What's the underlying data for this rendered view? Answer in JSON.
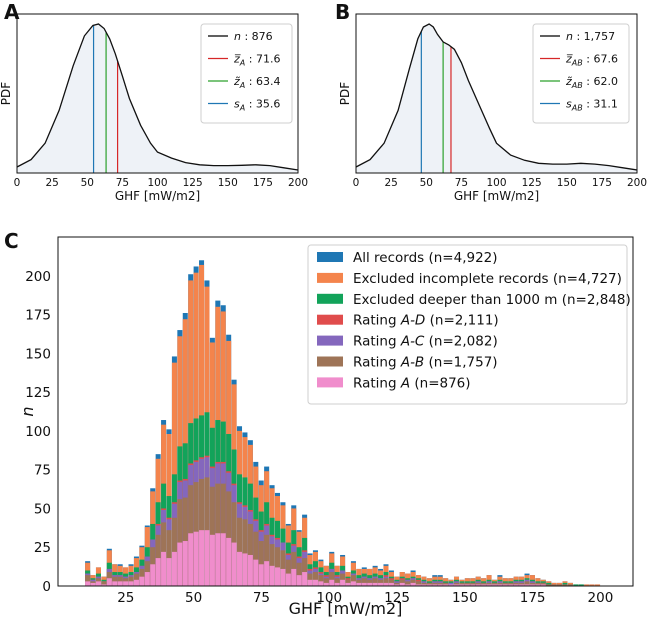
{
  "chart_data": [
    {
      "id": "A",
      "type": "line",
      "panel_label": "A",
      "xlabel": "GHF [mW/m2]",
      "ylabel": "PDF",
      "xlim": [
        0,
        200
      ],
      "xticks": [
        "0",
        "25",
        "50",
        "75",
        "100",
        "125",
        "150",
        "175",
        "200"
      ],
      "curve": {
        "x": [
          0,
          10,
          20,
          30,
          40,
          48,
          54,
          58,
          62,
          66,
          70,
          75,
          80,
          88,
          95,
          100,
          110,
          120,
          130,
          140,
          150,
          160,
          170,
          180,
          190,
          200
        ],
        "y": [
          0.04,
          0.09,
          0.2,
          0.42,
          0.72,
          0.92,
          0.99,
          1.0,
          0.97,
          0.9,
          0.8,
          0.65,
          0.5,
          0.32,
          0.2,
          0.14,
          0.1,
          0.07,
          0.055,
          0.05,
          0.05,
          0.052,
          0.055,
          0.05,
          0.035,
          0.02
        ]
      },
      "vlines": [
        {
          "name": "z_bar",
          "x": 71.6,
          "color": "#d62728"
        },
        {
          "name": "z_tilde",
          "x": 63.4,
          "color": "#2ca02c"
        },
        {
          "name": "s",
          "x": 54.5,
          "color": "#1f77b4"
        }
      ],
      "legend": [
        {
          "sym": "n",
          "sub": "",
          "sep": " : ",
          "value": "876",
          "color": "#000000"
        },
        {
          "sym": "z̅",
          "sub": "A",
          "sep": " : ",
          "value": "71.6",
          "color": "#d62728"
        },
        {
          "sym": "z̃",
          "sub": "A",
          "sep": " : ",
          "value": "63.4",
          "color": "#2ca02c"
        },
        {
          "sym": "s",
          "sub": "A",
          "sep": " : ",
          "value": "35.6",
          "color": "#1f77b4"
        }
      ]
    },
    {
      "id": "B",
      "type": "line",
      "panel_label": "B",
      "xlabel": "GHF [mW/m2]",
      "ylabel": "PDF",
      "xlim": [
        0,
        200
      ],
      "xticks": [
        "0",
        "25",
        "50",
        "75",
        "100",
        "125",
        "150",
        "175",
        "200"
      ],
      "curve": {
        "x": [
          0,
          10,
          20,
          30,
          38,
          44,
          48,
          52,
          55,
          58,
          62,
          66,
          70,
          75,
          80,
          88,
          95,
          100,
          110,
          120,
          130,
          140,
          150,
          160,
          170,
          180,
          190,
          200
        ],
        "y": [
          0.04,
          0.09,
          0.2,
          0.42,
          0.7,
          0.9,
          0.98,
          1.0,
          0.98,
          0.93,
          0.88,
          0.86,
          0.83,
          0.74,
          0.62,
          0.45,
          0.3,
          0.2,
          0.12,
          0.085,
          0.065,
          0.06,
          0.06,
          0.065,
          0.06,
          0.05,
          0.035,
          0.02
        ]
      },
      "vlines": [
        {
          "name": "z_bar",
          "x": 67.6,
          "color": "#d62728"
        },
        {
          "name": "z_tilde",
          "x": 62.0,
          "color": "#2ca02c"
        },
        {
          "name": "s",
          "x": 46.5,
          "color": "#1f77b4"
        }
      ],
      "legend": [
        {
          "sym": "n",
          "sub": "",
          "sep": " : ",
          "value": "1,757",
          "color": "#000000"
        },
        {
          "sym": "z̅",
          "sub": "AB",
          "sep": " : ",
          "value": "67.6",
          "color": "#d62728"
        },
        {
          "sym": "z̃",
          "sub": "AB",
          "sep": " : ",
          "value": "62.0",
          "color": "#2ca02c"
        },
        {
          "sym": "s",
          "sub": "AB",
          "sep": " : ",
          "value": "31.1",
          "color": "#1f77b4"
        }
      ]
    },
    {
      "id": "C",
      "type": "bar",
      "panel_label": "C",
      "xlabel": "GHF [mW/m2]",
      "ylabel": "n",
      "ylim": [
        0,
        225
      ],
      "yticks": [
        "0",
        "25",
        "50",
        "75",
        "100",
        "125",
        "150",
        "175",
        "200"
      ],
      "xticks": [
        "25",
        "50",
        "75",
        "100",
        "125",
        "150",
        "175",
        "200"
      ],
      "bin_width": 2,
      "bin_start": 10,
      "series": [
        {
          "name": "All records (n=4,922)",
          "color": "#1f77b4",
          "values": [
            16,
            7,
            12,
            6,
            24,
            14,
            14,
            12,
            14,
            19,
            26,
            39,
            63,
            85,
            107,
            101,
            148,
            165,
            176,
            201,
            206,
            210,
            197,
            160,
            184,
            181,
            162,
            133,
            103,
            99,
            94,
            80,
            68,
            77,
            65,
            60,
            54,
            40,
            52,
            36,
            46,
            21,
            23,
            17,
            13,
            22,
            13,
            20,
            9,
            16,
            11,
            12,
            11,
            13,
            11,
            14,
            10,
            6,
            9,
            8,
            10,
            7,
            6,
            5,
            7,
            7,
            5,
            4,
            6,
            4,
            5,
            5,
            6,
            5,
            7,
            4,
            7,
            5,
            5,
            6,
            6,
            8,
            7,
            5,
            4,
            3,
            2,
            2,
            3,
            2,
            1,
            1,
            1,
            1,
            1,
            0
          ]
        },
        {
          "name": "Excluded incomplete records (n=4,727)",
          "color": "#f4844c",
          "values": [
            15,
            7,
            12,
            6,
            23,
            14,
            13,
            12,
            13,
            18,
            25,
            38,
            61,
            82,
            104,
            98,
            144,
            161,
            172,
            197,
            202,
            207,
            193,
            157,
            180,
            177,
            158,
            130,
            100,
            96,
            91,
            77,
            65,
            74,
            63,
            58,
            52,
            39,
            50,
            35,
            44,
            20,
            22,
            16,
            13,
            21,
            13,
            19,
            9,
            15,
            11,
            11,
            11,
            12,
            10,
            13,
            9,
            6,
            9,
            8,
            9,
            7,
            6,
            5,
            6,
            6,
            5,
            4,
            6,
            4,
            5,
            5,
            6,
            5,
            7,
            4,
            6,
            5,
            5,
            6,
            6,
            7,
            7,
            5,
            4,
            3,
            2,
            2,
            3,
            2,
            1,
            1,
            1,
            1,
            1,
            0
          ]
        },
        {
          "name": "Excluded deeper than 1000 m (n=2,848)",
          "color": "#12a35a",
          "values": [
            10,
            5,
            8,
            4,
            15,
            9,
            9,
            8,
            9,
            12,
            17,
            25,
            40,
            54,
            66,
            58,
            72,
            90,
            92,
            105,
            108,
            110,
            112,
            102,
            107,
            106,
            98,
            88,
            72,
            70,
            66,
            57,
            48,
            54,
            44,
            42,
            37,
            28,
            36,
            25,
            31,
            14,
            16,
            12,
            9,
            15,
            9,
            13,
            6,
            10,
            7,
            8,
            7,
            8,
            7,
            9,
            6,
            4,
            6,
            5,
            6,
            5,
            4,
            3,
            4,
            4,
            3,
            3,
            4,
            3,
            3,
            3,
            4,
            3,
            4,
            3,
            4,
            3,
            3,
            4,
            4,
            5,
            4,
            3,
            3,
            2,
            1,
            1,
            2,
            1,
            1,
            1,
            0,
            0,
            0,
            0
          ]
        },
        {
          "name": "Rating A-D (n=2,111)",
          "color": "#e04c4c",
          "values": [
            8,
            4,
            6,
            3,
            11,
            7,
            7,
            6,
            7,
            9,
            13,
            19,
            30,
            40,
            50,
            44,
            54,
            68,
            69,
            79,
            81,
            83,
            84,
            77,
            80,
            80,
            74,
            66,
            54,
            52,
            49,
            43,
            36,
            40,
            33,
            31,
            28,
            21,
            27,
            19,
            23,
            11,
            12,
            9,
            7,
            11,
            7,
            10,
            5,
            8,
            5,
            6,
            5,
            6,
            5,
            7,
            5,
            3,
            5,
            4,
            5,
            4,
            3,
            2,
            3,
            3,
            2,
            2,
            3,
            2,
            2,
            2,
            3,
            2,
            3,
            2,
            3,
            2,
            2,
            3,
            3,
            4,
            3,
            2,
            2,
            1,
            1,
            1,
            1,
            1,
            0,
            0,
            0,
            0,
            0,
            0
          ]
        },
        {
          "name": "Rating A-C (n=2,082)",
          "color": "#8467bd",
          "values": [
            8,
            4,
            6,
            3,
            11,
            7,
            7,
            6,
            7,
            9,
            13,
            19,
            30,
            39,
            49,
            43,
            53,
            67,
            68,
            78,
            80,
            82,
            83,
            76,
            79,
            79,
            73,
            65,
            53,
            51,
            48,
            42,
            35,
            39,
            32,
            30,
            28,
            20,
            26,
            18,
            22,
            10,
            11,
            8,
            6,
            11,
            6,
            10,
            4,
            8,
            5,
            6,
            5,
            6,
            5,
            6,
            4,
            3,
            4,
            4,
            5,
            3,
            3,
            2,
            3,
            3,
            2,
            2,
            3,
            2,
            2,
            2,
            3,
            2,
            3,
            2,
            3,
            2,
            2,
            3,
            3,
            4,
            3,
            2,
            2,
            1,
            1,
            1,
            1,
            1,
            0,
            0,
            0,
            0,
            0,
            0
          ]
        },
        {
          "name": "Rating A-B (n=1,757)",
          "color": "#9e7457",
          "values": [
            7,
            3,
            5,
            3,
            9,
            6,
            6,
            5,
            6,
            8,
            11,
            16,
            25,
            33,
            41,
            36,
            44,
            56,
            57,
            65,
            67,
            69,
            70,
            64,
            66,
            66,
            61,
            54,
            44,
            43,
            40,
            35,
            29,
            33,
            27,
            25,
            23,
            17,
            22,
            15,
            18,
            8,
            9,
            7,
            5,
            9,
            5,
            8,
            4,
            7,
            4,
            5,
            4,
            5,
            4,
            5,
            4,
            2,
            4,
            3,
            4,
            3,
            2,
            2,
            2,
            2,
            2,
            1,
            2,
            2,
            2,
            2,
            2,
            2,
            2,
            2,
            2,
            2,
            2,
            2,
            2,
            3,
            2,
            2,
            2,
            1,
            1,
            1,
            1,
            1,
            0,
            0,
            0,
            0,
            0,
            0
          ]
        },
        {
          "name": "Rating A (n=876)",
          "color": "#f08dcc",
          "values": [
            3,
            2,
            3,
            1,
            5,
            3,
            3,
            3,
            3,
            4,
            6,
            9,
            14,
            18,
            22,
            18,
            22,
            28,
            29,
            34,
            35,
            36,
            36,
            33,
            34,
            34,
            31,
            28,
            22,
            21,
            20,
            17,
            14,
            16,
            13,
            12,
            11,
            8,
            11,
            7,
            9,
            4,
            4,
            3,
            2,
            4,
            2,
            4,
            2,
            3,
            2,
            2,
            2,
            2,
            2,
            2,
            2,
            1,
            2,
            1,
            2,
            1,
            1,
            1,
            1,
            1,
            1,
            1,
            1,
            1,
            1,
            1,
            1,
            1,
            1,
            1,
            1,
            1,
            1,
            1,
            1,
            1,
            1,
            1,
            1,
            0,
            0,
            0,
            0,
            0,
            0,
            0,
            0,
            0,
            0,
            0
          ]
        }
      ],
      "legend_suffixes": [
        {
          "label": "All records (n=4,922)",
          "italic": "",
          "rest": ""
        },
        {
          "label": "Excluded incomplete records (n=4,727)",
          "italic": "",
          "rest": ""
        },
        {
          "label": "Excluded deeper than 1000 m (n=2,848)",
          "italic": "",
          "rest": ""
        },
        {
          "label": "Rating ",
          "italic": "A-D",
          "rest": " (n=2,111)"
        },
        {
          "label": "Rating ",
          "italic": "A-C",
          "rest": " (n=2,082)"
        },
        {
          "label": "Rating ",
          "italic": "A-B",
          "rest": " (n=1,757)"
        },
        {
          "label": "Rating ",
          "italic": "A",
          "rest": " (n=876)"
        }
      ]
    }
  ]
}
